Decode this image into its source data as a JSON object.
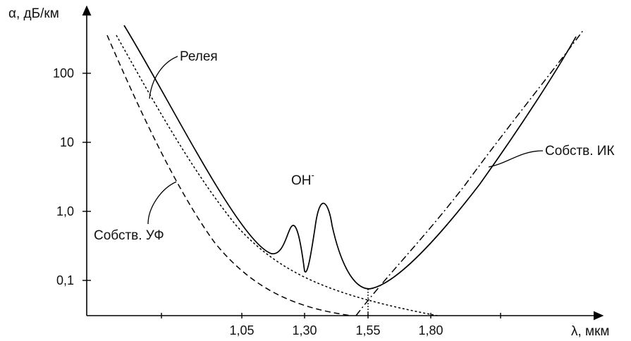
{
  "chart_data": {
    "type": "line",
    "title": "",
    "xlabel": "λ, мкм",
    "ylabel": "α, дБ/км",
    "yscale": "log",
    "grid": false,
    "ylim": [
      0.04,
      500
    ],
    "x_ticks": [
      "1,05",
      "1,30",
      "1,55",
      "1,80"
    ],
    "y_ticks": [
      "0,1",
      "1,0",
      "10",
      "100"
    ],
    "annotations": {
      "rayleigh": "Релея",
      "uv": "Собств. УФ",
      "ir": "Собств. ИК",
      "oh_base": "OH",
      "oh_sup": "-"
    },
    "series": [
      {
        "style": "solid",
        "x": [
          0.5,
          0.7,
          0.9,
          1.05,
          1.2,
          1.25,
          1.28,
          1.3,
          1.33,
          1.38,
          1.45,
          1.55,
          1.7,
          1.9,
          2.1,
          2.4
        ],
        "y": [
          400,
          60,
          8,
          1.5,
          0.25,
          0.3,
          0.6,
          0.15,
          0.5,
          1.3,
          0.2,
          0.08,
          0.35,
          3,
          25,
          400
        ]
      },
      {
        "style": "dotted",
        "x": [
          0.4,
          0.6,
          0.8,
          1.0,
          1.2,
          1.4,
          1.6,
          1.8
        ],
        "y": [
          300,
          30,
          3.5,
          0.6,
          0.18,
          0.08,
          0.055,
          0.045
        ]
      },
      {
        "style": "dashed",
        "x": [
          0.35,
          0.6,
          0.8,
          1.0,
          1.2,
          1.35,
          1.5
        ],
        "y": [
          300,
          15,
          1.8,
          0.35,
          0.1,
          0.06,
          0.045
        ]
      },
      {
        "style": "dash-dot",
        "x": [
          1.5,
          1.55,
          1.7,
          1.9,
          2.1,
          2.4
        ],
        "y": [
          0.045,
          0.055,
          0.25,
          2.5,
          20,
          350
        ]
      }
    ]
  }
}
